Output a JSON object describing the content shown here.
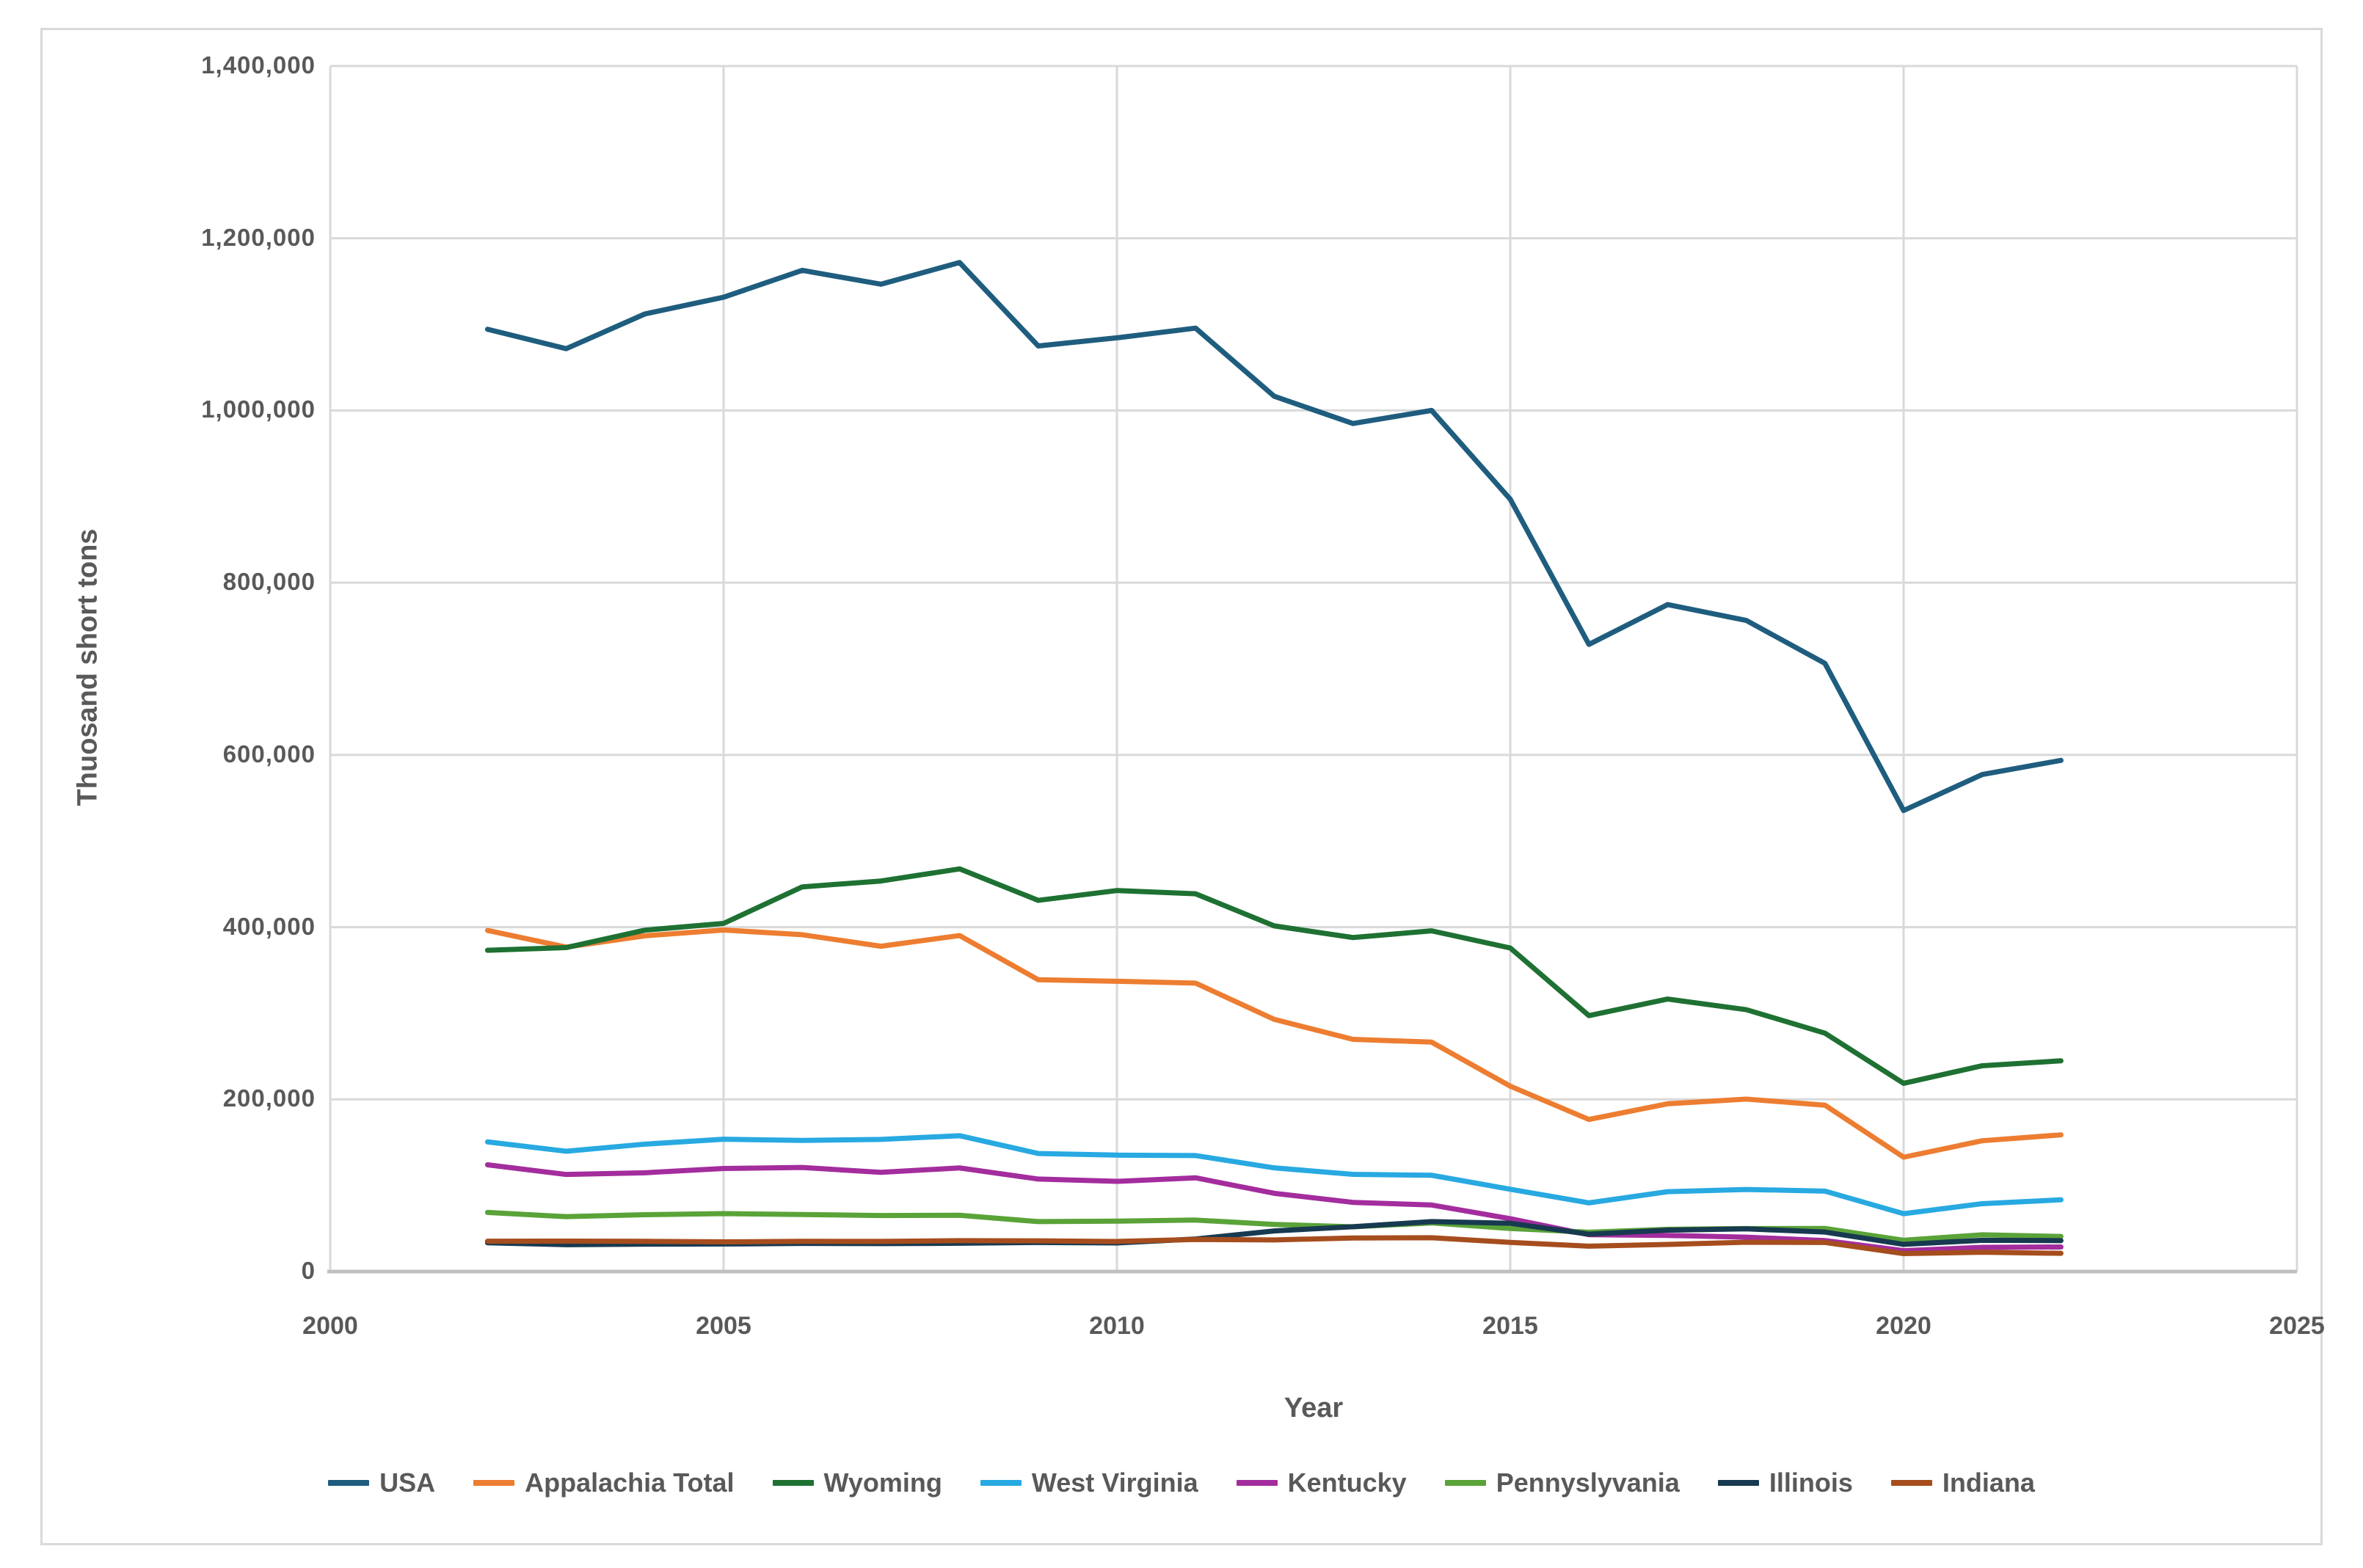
{
  "window": {
    "background": "#ffffff",
    "border_color": "#d9d9d9"
  },
  "colors": {
    "grid": "#d9d9d9",
    "axis_line": "#bfbfbf",
    "tick_text": "#595959",
    "axis_title_text": "#595959"
  },
  "chart_data": {
    "type": "line",
    "title": "",
    "ylabel": "Thuosand short tons",
    "xlabel": "Year",
    "ylim": [
      0,
      1400000
    ],
    "xlim": [
      2000,
      2025
    ],
    "y_tick_step": 200000,
    "x_tick_step": 5,
    "y_tick_labels": [
      "0",
      "200,000",
      "400,000",
      "600,000",
      "800,000",
      "1,000,000",
      "1,200,000",
      "1,400,000"
    ],
    "x_tick_labels": [
      "2000",
      "2005",
      "2010",
      "2015",
      "2020",
      "2025"
    ],
    "grid": true,
    "legend_position": "bottom",
    "x": [
      2002,
      2003,
      2004,
      2005,
      2006,
      2007,
      2008,
      2009,
      2010,
      2011,
      2012,
      2013,
      2014,
      2015,
      2016,
      2017,
      2018,
      2019,
      2020,
      2021,
      2022
    ],
    "series": [
      {
        "name": "USA",
        "color": "#1f5d7e",
        "values": [
          1094283,
          1071753,
          1112099,
          1131498,
          1162750,
          1146635,
          1171809,
          1074923,
          1084368,
          1095628,
          1016458,
          984842,
          1000049,
          896941,
          728364,
          774609,
          756167,
          706309,
          535434,
          577260,
          593667
        ]
      },
      {
        "name": "Appalachia Total",
        "color": "#ed7d31",
        "values": [
          396190,
          376778,
          389928,
          396639,
          391175,
          377817,
          390222,
          338893,
          337155,
          334982,
          292879,
          269672,
          266470,
          215300,
          176641,
          194870,
          200293,
          193240,
          132813,
          151936,
          158757
        ]
      },
      {
        "name": "Wyoming",
        "color": "#1e7132",
        "values": [
          373161,
          376270,
          396493,
          404319,
          446742,
          453568,
          467644,
          431107,
          442522,
          438731,
          401442,
          387924,
          395705,
          375773,
          297234,
          316478,
          304164,
          276894,
          218591,
          239060,
          244739
        ]
      },
      {
        "name": "West Virginia",
        "color": "#28a9e1",
        "values": [
          150581,
          139718,
          147993,
          153653,
          152355,
          153481,
          157778,
          137128,
          135220,
          134716,
          120425,
          112872,
          111834,
          95633,
          79787,
          92775,
          95372,
          93391,
          67234,
          78862,
          83351
        ]
      },
      {
        "name": "Kentucky",
        "color": "#a32d9d",
        "values": [
          123972,
          112748,
          114742,
          119737,
          120848,
          115289,
          120352,
          107436,
          104768,
          108867,
          90867,
          80355,
          77314,
          61423,
          42864,
          41959,
          39940,
          36034,
          24323,
          28149,
          28543
        ]
      },
      {
        "name": "Pennyslyvania",
        "color": "#5aa338",
        "values": [
          68667,
          63768,
          66023,
          67346,
          66257,
          65048,
          65414,
          58009,
          58593,
          59810,
          54716,
          52000,
          56500,
          50031,
          45702,
          49089,
          49931,
          50057,
          36315,
          42744,
          40751
        ]
      },
      {
        "name": "Illinois",
        "color": "#173a50",
        "values": [
          33444,
          31259,
          31830,
          32014,
          32674,
          32445,
          32901,
          33748,
          33241,
          37786,
          47203,
          52107,
          58010,
          56101,
          43437,
          48091,
          49588,
          45870,
          31611,
          36351,
          35945
        ]
      },
      {
        "name": "Indiana",
        "color": "#a64d1e",
        "values": [
          35304,
          35337,
          35150,
          34457,
          35126,
          35003,
          35893,
          35646,
          34969,
          37248,
          36794,
          38967,
          39296,
          33911,
          29494,
          31525,
          34035,
          33812,
          20831,
          22474,
          21195
        ]
      }
    ]
  }
}
